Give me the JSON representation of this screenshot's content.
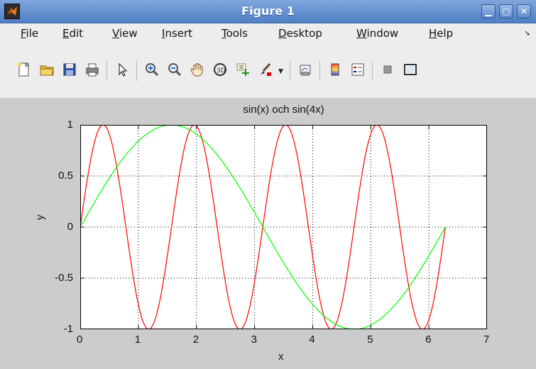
{
  "window": {
    "title": "Figure 1"
  },
  "menu": {
    "items": [
      {
        "label": "File",
        "u": "F"
      },
      {
        "label": "Edit",
        "u": "E"
      },
      {
        "label": "View",
        "u": "V"
      },
      {
        "label": "Insert",
        "u": "I"
      },
      {
        "label": "Tools",
        "u": "T"
      },
      {
        "label": "Desktop",
        "u": "D"
      },
      {
        "label": "Window",
        "u": "W"
      },
      {
        "label": "Help",
        "u": "H"
      }
    ]
  },
  "toolbar": {
    "icons": [
      "new-figure-icon",
      "open-folder-icon",
      "save-icon",
      "print-icon",
      "arrow-pointer-icon",
      "zoom-in-icon",
      "zoom-out-icon",
      "pan-hand-icon",
      "rotate-3d-icon",
      "data-cursor-icon",
      "brush-icon",
      "dropdown-arrow-icon",
      "link-plot-icon",
      "colorbar-icon",
      "legend-icon",
      "hide-plot-tools-icon",
      "show-plot-tools-icon"
    ]
  },
  "chart_data": {
    "type": "line",
    "title": "sin(x) och sin(4x)",
    "xlabel": "x",
    "ylabel": "y",
    "xlim": [
      0,
      7
    ],
    "ylim": [
      -1,
      1
    ],
    "xticks": [
      "0",
      "1",
      "2",
      "3",
      "4",
      "5",
      "6",
      "7"
    ],
    "yticks": [
      "1",
      "0.5",
      "0",
      "-0.5",
      "-1"
    ],
    "grid": true,
    "grid_style": "dotted",
    "series": [
      {
        "function": "sin(4x)",
        "color": "#ff0000",
        "x_range": [
          0,
          6.2832
        ]
      },
      {
        "function": "sin(x)",
        "color": "#00ff00",
        "x_range": [
          0,
          6.2832
        ]
      }
    ]
  }
}
